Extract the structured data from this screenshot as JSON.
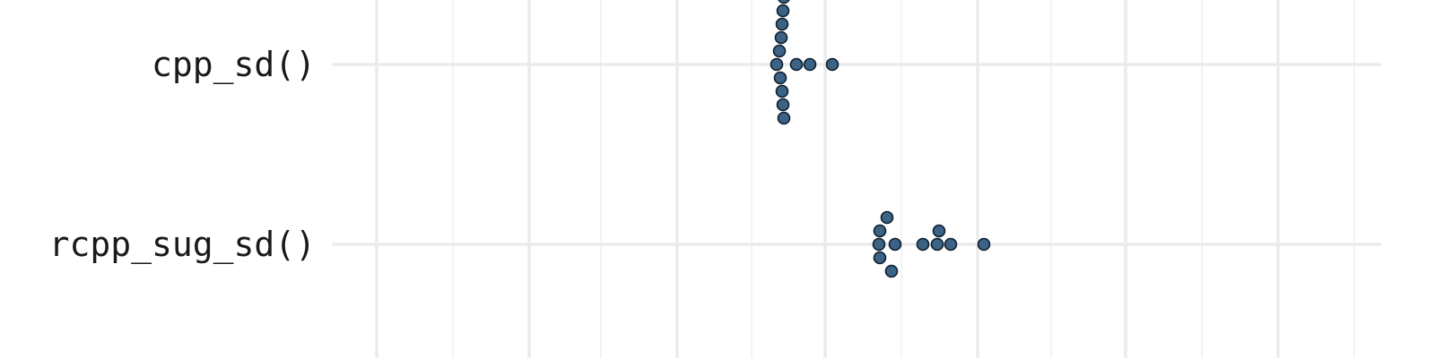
{
  "chart_data": {
    "type": "scatter",
    "orientation": "horizontal",
    "categories": [
      "cpp_sd()",
      "rcpp_sug_sd()"
    ],
    "series": [
      {
        "category": "cpp_sd()",
        "x": [
          873,
          874,
          873,
          871,
          869,
          870,
          866,
          888,
          903,
          928,
          872,
          872,
          874
        ]
      },
      {
        "category": "rcpp_sug_sd()",
        "x": [
          994,
          981,
          981,
          998,
          980,
          1029,
          1045,
          1060,
          1097,
          989,
          1047
        ]
      }
    ],
    "xlim": [
      370,
      1540
    ],
    "x_major_ticks": [
      420,
      590,
      755,
      920,
      1090,
      1255,
      1425
    ],
    "x_minor_ticks": [
      505,
      670,
      838,
      1005,
      1172,
      1340,
      1510
    ],
    "grid": true,
    "point_color": "#3b6385",
    "point_edge_color": "#0f1e2d",
    "grid_color": "#ebebeb"
  }
}
